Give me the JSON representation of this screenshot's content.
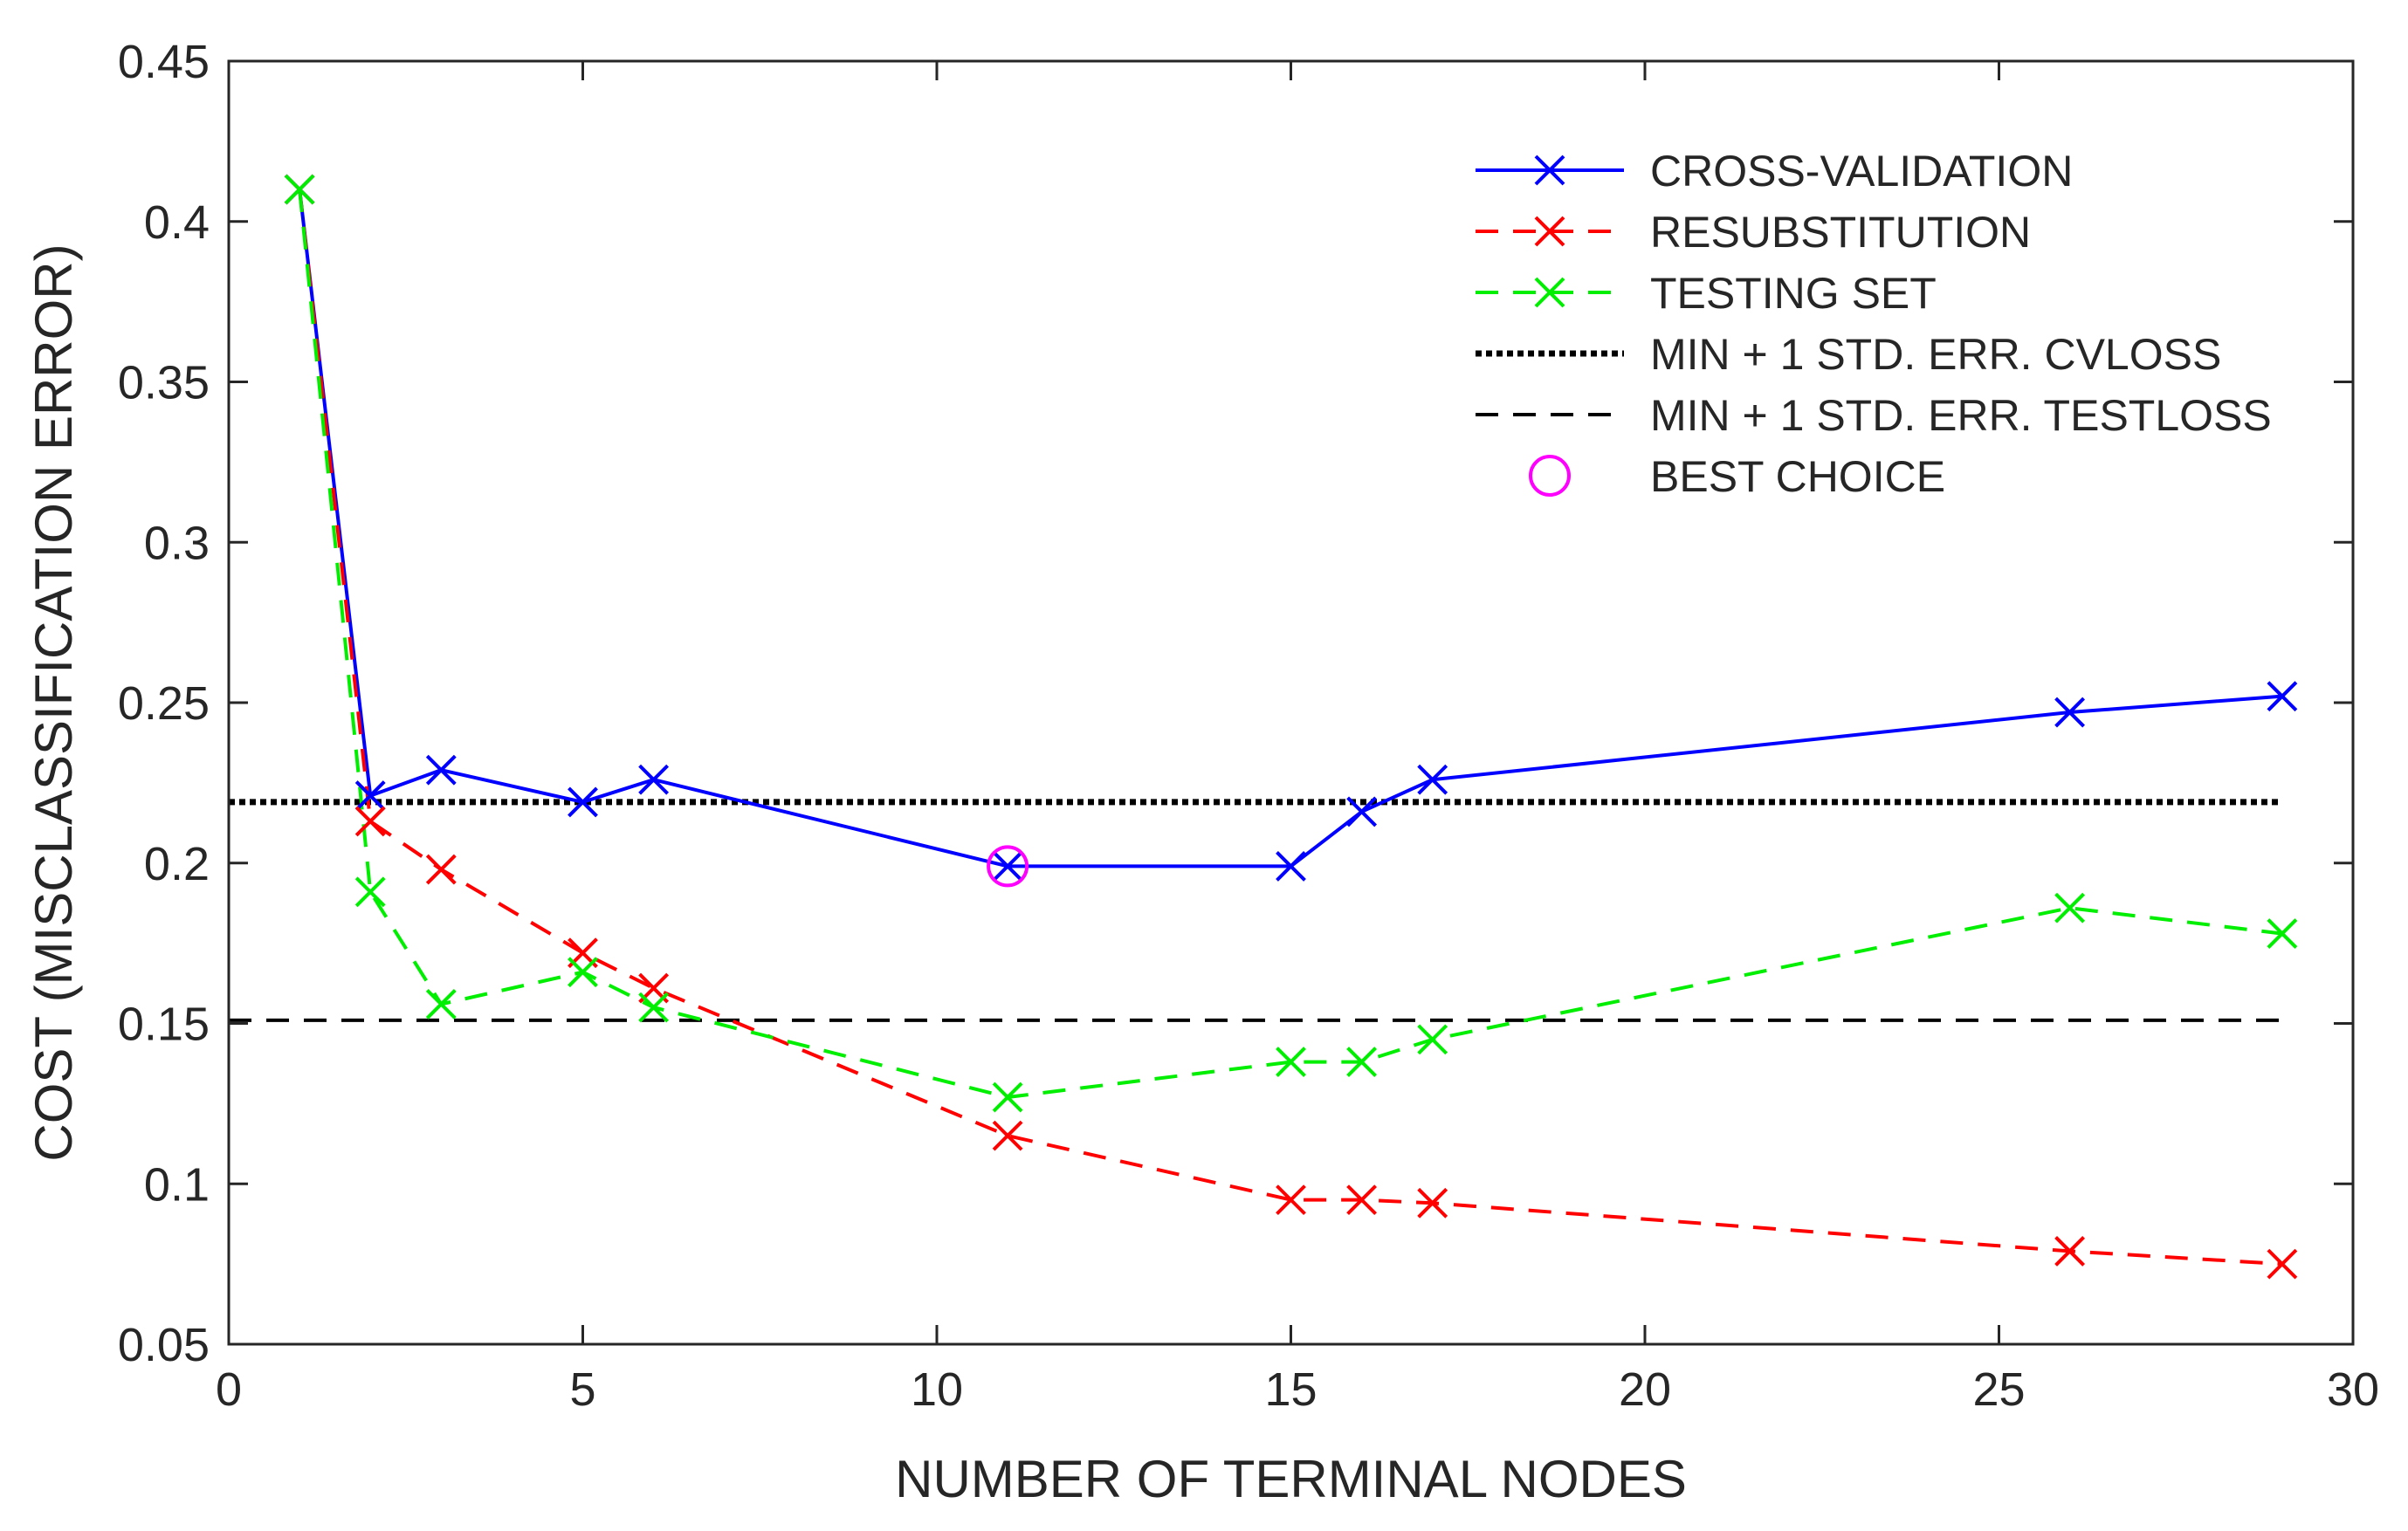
{
  "chart_data": {
    "type": "line",
    "title": "",
    "xlabel": "NUMBER OF TERMINAL NODES",
    "ylabel": "COST (MISCLASSIFICATION ERROR)",
    "xlim": [
      0,
      30
    ],
    "ylim": [
      0.05,
      0.45
    ],
    "xticks": [
      0,
      5,
      10,
      15,
      20,
      25,
      30
    ],
    "yticks": [
      0.05,
      0.1,
      0.15,
      0.2,
      0.25,
      0.3,
      0.35,
      0.4,
      0.45
    ],
    "xtick_labels": [
      "0",
      "5",
      "10",
      "15",
      "20",
      "25",
      "30"
    ],
    "ytick_labels": [
      "0.05",
      "0.1",
      "0.15",
      "0.2",
      "0.25",
      "0.3",
      "0.35",
      "0.4",
      "0.45"
    ],
    "grid": false,
    "legend_position": "top-right",
    "series": [
      {
        "name": "CROSS-VALIDATION",
        "color": "#0000ff",
        "line": "solid",
        "marker": "x",
        "x": [
          1,
          2,
          3,
          5,
          6,
          11,
          15,
          16,
          17,
          26,
          29
        ],
        "y": [
          0.41,
          0.221,
          0.229,
          0.219,
          0.226,
          0.199,
          0.199,
          0.216,
          0.226,
          0.247,
          0.252
        ]
      },
      {
        "name": "RESUBSTITUTION",
        "color": "#ff0000",
        "line": "dashed",
        "marker": "x",
        "x": [
          1,
          2,
          3,
          5,
          6,
          11,
          15,
          16,
          17,
          26,
          29
        ],
        "y": [
          0.41,
          0.213,
          0.198,
          0.172,
          0.161,
          0.115,
          0.095,
          0.095,
          0.094,
          0.079,
          0.075
        ]
      },
      {
        "name": "TESTING SET",
        "color": "#00ee00",
        "line": "dashed",
        "marker": "x",
        "x": [
          1,
          2,
          3,
          5,
          6,
          11,
          15,
          16,
          17,
          26,
          29
        ],
        "y": [
          0.41,
          0.191,
          0.156,
          0.166,
          0.155,
          0.127,
          0.138,
          0.138,
          0.145,
          0.186,
          0.178
        ]
      }
    ],
    "reference_lines": [
      {
        "name": "MIN + 1 STD. ERR. CVLOSS",
        "color": "#000000",
        "line": "dotted",
        "y": 0.219,
        "x_range": [
          0,
          29
        ]
      },
      {
        "name": "MIN + 1 STD. ERR. TESTLOSS",
        "color": "#000000",
        "line": "dashed",
        "y": 0.151,
        "x_range": [
          0,
          29
        ]
      }
    ],
    "highlight": {
      "name": "BEST CHOICE",
      "color": "#ff00ff",
      "marker": "circle",
      "x": 11,
      "y": 0.199
    }
  }
}
